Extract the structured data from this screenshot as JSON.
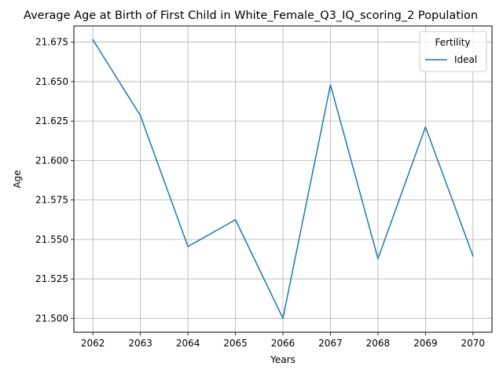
{
  "chart_data": {
    "type": "line",
    "title": "Average Age at Birth of First Child in White_Female_Q3_IQ_scoring_2 Population",
    "xlabel": "Years",
    "ylabel": "Age",
    "x": [
      2062,
      2063,
      2064,
      2065,
      2066,
      2067,
      2068,
      2069,
      2070
    ],
    "series": [
      {
        "name": "Ideal",
        "color": "#1f77b4",
        "values": [
          21.6765,
          21.6285,
          21.5455,
          21.5625,
          21.5,
          21.648,
          21.5378,
          21.6213,
          21.5395
        ]
      }
    ],
    "xlim": [
      2061.6,
      2070.4
    ],
    "ylim": [
      21.4912,
      21.6853
    ],
    "yticks": [
      "21.500",
      "21.525",
      "21.550",
      "21.575",
      "21.600",
      "21.625",
      "21.650",
      "21.675"
    ],
    "xticks": [
      "2062",
      "2063",
      "2064",
      "2065",
      "2066",
      "2067",
      "2068",
      "2069",
      "2070"
    ],
    "grid": true,
    "legend": {
      "title": "Fertility",
      "position": "top-right"
    }
  }
}
